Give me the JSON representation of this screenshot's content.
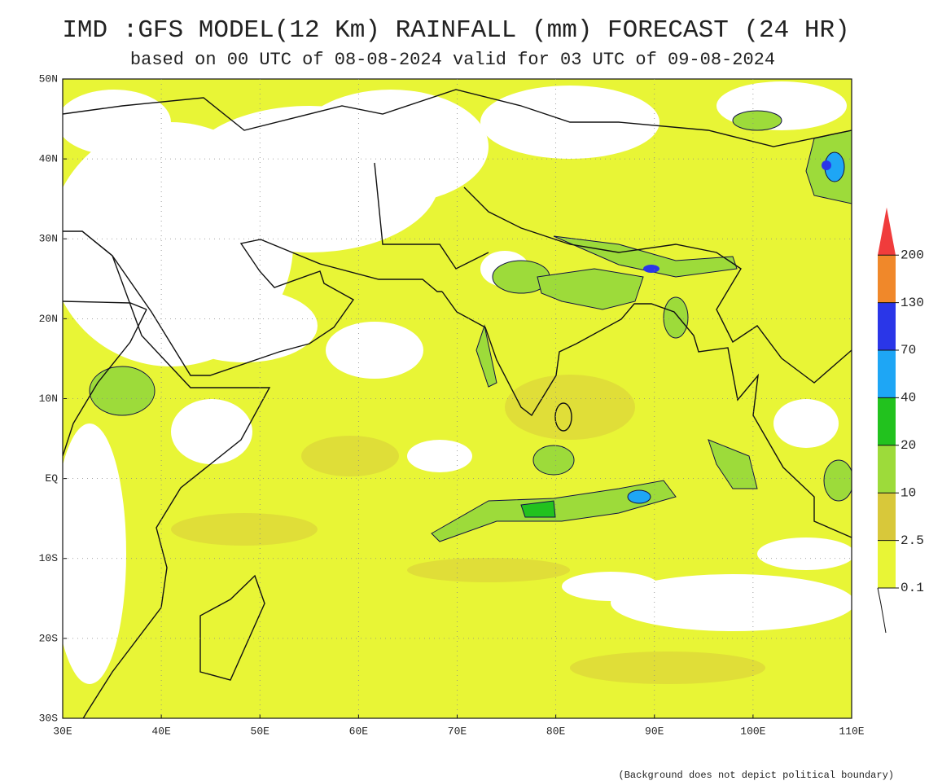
{
  "header": {
    "title": "IMD :GFS MODEL(12 Km) RAINFALL (mm) FORECAST (24 HR)",
    "subtitle": "based on 00 UTC of 08-08-2024 valid for 03 UTC of 09-08-2024"
  },
  "map": {
    "lat_labels": [
      "50N",
      "40N",
      "30N",
      "20N",
      "10N",
      "EQ",
      "10S",
      "20S",
      "30S"
    ],
    "lon_labels": [
      "30E",
      "40E",
      "50E",
      "60E",
      "70E",
      "80E",
      "90E",
      "100E",
      "110E"
    ]
  },
  "legend": {
    "levels": [
      "0.1",
      "2.5",
      "10",
      "20",
      "40",
      "70",
      "130",
      "200"
    ],
    "colors": [
      "#e8f536",
      "#d8c83a",
      "#9ddb3a",
      "#22c21e",
      "#1ea6f5",
      "#2a36e8",
      "#f0882a",
      "#f03c3c"
    ]
  },
  "footnote": "(Background does not depict political boundary)"
}
